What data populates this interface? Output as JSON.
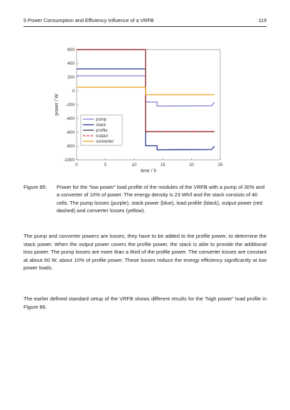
{
  "header": {
    "chapter": "5 Power Consumption and Efficiency Influence of a VRFB",
    "page_number": "119"
  },
  "figure": {
    "label": "Figure 85:",
    "caption": "Power for the “low power” load profile of the modules of the VRFB with a pump of 30% and a converter of 10% of power. The energy density is 23 Wh/l and the stack consists of 40 cells. The pump losses (purple), stack power (blue), load profile (black), output power (red dashed) and converter losses (yellow)."
  },
  "paragraphs": [
    "The pump and converter powers are losses, they have to be added to the profile power, to determine the stack power. When the output power covers the profile power, the stack is able to provide the additional loss power. The pump losses are more than a third of the profile power. The converter losses are constant at about 60 W, about 10% of profile power. These losses reduce the energy efficiency significantly at low power loads.",
    "The earlier defined standard setup of the VRFB shows different results for the “high power” load profile in Figure 86."
  ],
  "chart_data": {
    "type": "line",
    "xlabel": "time / h",
    "ylabel": "power / W",
    "xlim": [
      0,
      25
    ],
    "ylim": [
      -1000,
      600
    ],
    "xticks": [
      0,
      5,
      10,
      15,
      20,
      25
    ],
    "yticks": [
      600,
      400,
      200,
      0,
      -200,
      -400,
      -600,
      -800,
      -1000
    ],
    "grid": false,
    "legend_position": "bottom-left",
    "series": [
      {
        "name": "pump",
        "color": "#7b7fd6",
        "style": "solid",
        "x": [
          0,
          12,
          12,
          14,
          14,
          23.5,
          24
        ],
        "y": [
          220,
          220,
          -160,
          -160,
          -220,
          -215,
          -165
        ]
      },
      {
        "name": "stack",
        "color": "#1f2f8f",
        "style": "solid",
        "x": [
          0,
          12,
          12,
          14,
          14,
          23.5,
          24
        ],
        "y": [
          320,
          320,
          -795,
          -795,
          -855,
          -850,
          -800
        ]
      },
      {
        "name": "profile",
        "color": "#3a3a3a",
        "style": "solid",
        "x": [
          0,
          12,
          12,
          24
        ],
        "y": [
          600,
          600,
          -590,
          -590
        ]
      },
      {
        "name": "output",
        "color": "#d8242a",
        "style": "dashed",
        "x": [
          0,
          12,
          12,
          24
        ],
        "y": [
          600,
          600,
          -590,
          -590
        ]
      },
      {
        "name": "converter",
        "color": "#f0a020",
        "style": "solid",
        "x": [
          0,
          12,
          12,
          24
        ],
        "y": [
          55,
          55,
          -55,
          -55
        ]
      }
    ]
  }
}
